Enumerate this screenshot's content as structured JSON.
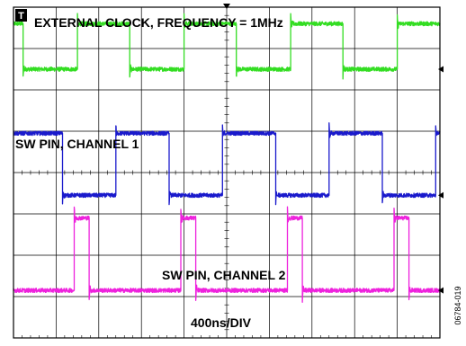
{
  "chart_data": {
    "type": "line",
    "time_scale": "400ns/DIV",
    "x_range_ns": [
      0,
      4000
    ],
    "x_divisions": 10,
    "y_divisions": 8,
    "grid": true,
    "trigger_badge": "T",
    "figure_code": "06784-019",
    "series": [
      {
        "name": "EXTERNAL CLOCK, FREQUENCY = 1MHz",
        "color": "#33dd22",
        "level_high_div": 7.6,
        "level_low_div": 6.5,
        "initial_state": 1,
        "transitions_ns": [
          90,
          600,
          1090,
          1600,
          2090,
          2600,
          3090,
          3600
        ],
        "noise_div": 0.05,
        "ring_div": 0.2
      },
      {
        "name": "SW PIN, CHANNEL 1",
        "color": "#1a1acc",
        "level_high_div": 4.95,
        "level_low_div": 3.45,
        "initial_state": 1,
        "transitions_ns": [
          460,
          960,
          1460,
          1960,
          2460,
          2960,
          3460,
          3960
        ],
        "noise_div": 0.05,
        "ring_div": 0.2
      },
      {
        "name": "SW PIN, CHANNEL 2",
        "color": "#ee22dd",
        "level_high_div": 2.9,
        "level_low_div": 1.15,
        "initial_state": 0,
        "transitions_ns": [
          570,
          710,
          1570,
          1710,
          2570,
          2710,
          3570,
          3710
        ],
        "noise_div": 0.05,
        "ring_div": 0.25
      }
    ]
  }
}
